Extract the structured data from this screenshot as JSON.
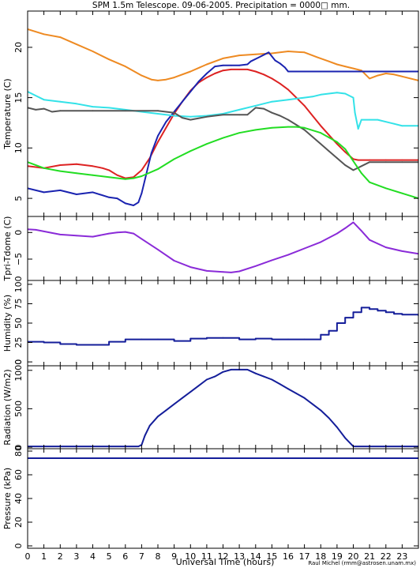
{
  "title": "SPM 1.5m Telescope. 09-06-2005. Precipitation = 0000□ mm.",
  "xlabel": "Universal Time (hours)",
  "credit": "Raul Michel (rmm@astrosen.unam.mx)",
  "colors": {
    "orange": "#ee8a22",
    "red": "#dd2222",
    "blue": "#1a23b0",
    "cyan": "#33e2e8",
    "gray": "#555555",
    "green": "#22dd22",
    "purple": "#8a2bd8",
    "navy": "#141e9a"
  },
  "chart_data": [
    {
      "type": "line",
      "ylabel": "Temperature (C)",
      "xlim": [
        0,
        24
      ],
      "ylim": [
        3.2,
        23.6
      ],
      "xticks": [
        0,
        1,
        2,
        3,
        4,
        5,
        6,
        7,
        8,
        9,
        10,
        11,
        12,
        13,
        14,
        15,
        16,
        17,
        18,
        19,
        20,
        21,
        22,
        23
      ],
      "yticks": [
        5,
        10,
        15,
        20
      ],
      "series": [
        {
          "color": "orange",
          "x": [
            0,
            1,
            2,
            3,
            4,
            5,
            6,
            7,
            7.6,
            8,
            8.5,
            9,
            10,
            11,
            12,
            13,
            14,
            15,
            16,
            17,
            17.8,
            18.5,
            19,
            19.5,
            20,
            20.5,
            21,
            21.5,
            22,
            22.5,
            23,
            24
          ],
          "y": [
            21.8,
            21.3,
            21.0,
            20.3,
            19.6,
            18.8,
            18.1,
            17.2,
            16.8,
            16.7,
            16.8,
            17.0,
            17.6,
            18.3,
            18.9,
            19.2,
            19.3,
            19.4,
            19.6,
            19.5,
            19.0,
            18.6,
            18.3,
            18.1,
            17.9,
            17.7,
            16.9,
            17.2,
            17.4,
            17.3,
            17.1,
            16.7
          ]
        },
        {
          "color": "red",
          "x": [
            0,
            1,
            2,
            3,
            4,
            4.6,
            5.0,
            5.5,
            6,
            6.5,
            7,
            7.5,
            8,
            8.5,
            9,
            9.5,
            10,
            10.5,
            11,
            11.5,
            12,
            12.5,
            13,
            13.5,
            14,
            14.5,
            15,
            15.5,
            16,
            16.5,
            17,
            17.5,
            18,
            18.5,
            19,
            19.5,
            20,
            20.3,
            21,
            22,
            23,
            24
          ],
          "y": [
            8.2,
            8.0,
            8.3,
            8.4,
            8.2,
            8.0,
            7.8,
            7.3,
            7.0,
            7.1,
            7.8,
            9.0,
            10.6,
            12.0,
            13.4,
            14.6,
            15.7,
            16.5,
            17.0,
            17.4,
            17.7,
            17.8,
            17.8,
            17.8,
            17.6,
            17.3,
            16.9,
            16.4,
            15.8,
            15.0,
            14.2,
            13.2,
            12.2,
            11.3,
            10.4,
            9.6,
            8.9,
            8.8,
            8.8,
            8.8,
            8.8,
            8.8
          ]
        },
        {
          "color": "blue",
          "x": [
            0,
            1,
            2,
            3,
            4,
            5,
            5.5,
            6,
            6.5,
            6.8,
            7,
            7.3,
            7.6,
            8,
            8.5,
            9,
            9.5,
            10,
            10.5,
            11,
            11.5,
            12,
            12.5,
            13,
            13.5,
            13.7,
            14.2,
            14.8,
            15.2,
            15.5,
            15.8,
            16,
            16.5,
            17,
            18,
            19,
            20,
            21,
            22,
            23,
            24
          ],
          "y": [
            6.0,
            5.6,
            5.8,
            5.4,
            5.6,
            5.1,
            5.0,
            4.5,
            4.3,
            4.6,
            5.5,
            7.5,
            9.5,
            11.2,
            12.6,
            13.6,
            14.6,
            15.6,
            16.6,
            17.4,
            18.1,
            18.2,
            18.2,
            18.2,
            18.3,
            18.6,
            19.0,
            19.5,
            18.7,
            18.4,
            18.0,
            17.6,
            17.6,
            17.6,
            17.6,
            17.6,
            17.6,
            17.6,
            17.6,
            17.6,
            17.6
          ]
        },
        {
          "color": "cyan",
          "x": [
            0,
            0.5,
            1,
            2,
            3,
            4,
            5,
            6,
            7,
            8,
            9,
            10,
            11,
            12,
            13,
            14,
            15,
            16,
            17,
            17.5,
            18,
            18.5,
            19,
            19.5,
            20,
            20.1,
            20.3,
            20.5,
            21,
            21.5,
            22,
            22.5,
            23,
            24
          ],
          "y": [
            15.6,
            15.2,
            14.8,
            14.6,
            14.4,
            14.1,
            14.0,
            13.8,
            13.6,
            13.4,
            13.2,
            13.1,
            13.2,
            13.4,
            13.8,
            14.2,
            14.6,
            14.8,
            15.0,
            15.1,
            15.3,
            15.4,
            15.5,
            15.4,
            15.0,
            13.5,
            11.9,
            12.8,
            12.8,
            12.8,
            12.6,
            12.4,
            12.2,
            12.2
          ]
        },
        {
          "color": "gray",
          "x": [
            0,
            0.5,
            1,
            1.5,
            2,
            4,
            6,
            8,
            9,
            9.5,
            10,
            11,
            12,
            13,
            13.5,
            14,
            14.5,
            15,
            15.5,
            16,
            16.5,
            17,
            17.5,
            18,
            18.5,
            19,
            19.5,
            20,
            20.5,
            21,
            22,
            23,
            24
          ],
          "y": [
            14.0,
            13.8,
            13.9,
            13.6,
            13.7,
            13.7,
            13.7,
            13.7,
            13.5,
            13.0,
            12.8,
            13.1,
            13.3,
            13.3,
            13.3,
            14.0,
            13.9,
            13.5,
            13.2,
            12.8,
            12.3,
            11.8,
            11.1,
            10.4,
            9.7,
            9.0,
            8.3,
            7.8,
            8.2,
            8.6,
            8.6,
            8.6,
            8.6
          ]
        },
        {
          "color": "green",
          "x": [
            0,
            1,
            2,
            3,
            4,
            5,
            6,
            6.5,
            7,
            8,
            9,
            10,
            11,
            12,
            13,
            14,
            15,
            16,
            16.5,
            17,
            18,
            19,
            19.5,
            20,
            20.5,
            21,
            22,
            23,
            24
          ],
          "y": [
            8.6,
            8.0,
            7.7,
            7.5,
            7.3,
            7.1,
            6.9,
            7.0,
            7.2,
            7.9,
            8.9,
            9.7,
            10.4,
            11.0,
            11.5,
            11.8,
            12.0,
            12.1,
            12.1,
            12.0,
            11.5,
            10.6,
            9.9,
            8.7,
            7.5,
            6.6,
            6.0,
            5.5,
            5.0
          ]
        }
      ]
    },
    {
      "type": "line",
      "ylabel": "Tpri-Tdome (C)",
      "xlim": [
        0,
        24
      ],
      "ylim": [
        -9,
        3
      ],
      "yticks": [
        0,
        -5
      ],
      "series": [
        {
          "color": "purple",
          "x": [
            0,
            0.5,
            1,
            1.5,
            2,
            3,
            4,
            5,
            5.5,
            6,
            6.5,
            7,
            8,
            9,
            10,
            11,
            12,
            12.5,
            13,
            14,
            15,
            16,
            17,
            18,
            19,
            19.5,
            20,
            20.5,
            21,
            22,
            23,
            24
          ],
          "y": [
            0.6,
            0.5,
            0.2,
            -0.1,
            -0.4,
            -0.6,
            -0.8,
            -0.2,
            0.0,
            0.1,
            -0.2,
            -1.2,
            -3.2,
            -5.3,
            -6.5,
            -7.2,
            -7.4,
            -7.5,
            -7.3,
            -6.3,
            -5.2,
            -4.2,
            -3.0,
            -1.8,
            -0.2,
            0.8,
            1.9,
            0.3,
            -1.4,
            -2.8,
            -3.5,
            -4.0
          ]
        }
      ]
    },
    {
      "type": "line",
      "ylabel": "Humidity (%)",
      "xlim": [
        0,
        24
      ],
      "ylim": [
        -5,
        105
      ],
      "yticks": [
        0,
        25,
        50,
        75,
        100
      ],
      "series": [
        {
          "color": "navy",
          "step": true,
          "x": [
            0,
            1,
            2,
            3,
            4,
            5,
            6,
            7,
            8,
            9,
            10,
            11,
            12,
            13,
            14,
            15,
            16,
            17,
            18,
            18.5,
            19,
            19.5,
            20,
            20.5,
            21,
            21.5,
            22,
            22.5,
            23,
            24
          ],
          "y": [
            26,
            25,
            23,
            22,
            22,
            26,
            29,
            29,
            29,
            27,
            30,
            31,
            31,
            29,
            30,
            29,
            29,
            29,
            35,
            40,
            50,
            57,
            64,
            70,
            68,
            66,
            64,
            62,
            61,
            60
          ]
        }
      ]
    },
    {
      "type": "line",
      "ylabel": "Radiation (W/m2)",
      "xlim": [
        0,
        24
      ],
      "ylim": [
        -20,
        1060
      ],
      "yticks": [
        0,
        500,
        1000
      ],
      "series": [
        {
          "color": "navy",
          "x": [
            0,
            1,
            2,
            3,
            4,
            5,
            6,
            6.8,
            7,
            7.2,
            7.5,
            8,
            8.5,
            9,
            9.5,
            10,
            10.5,
            11,
            11.5,
            12,
            12.5,
            13,
            13.5,
            14,
            14.5,
            15,
            15.5,
            16,
            16.5,
            17,
            17.5,
            18,
            18.5,
            19,
            19.5,
            20,
            21,
            22,
            23,
            24
          ],
          "y": [
            10,
            10,
            10,
            10,
            10,
            10,
            10,
            10,
            30,
            150,
            280,
            400,
            480,
            560,
            640,
            720,
            800,
            880,
            920,
            980,
            1010,
            1010,
            1010,
            960,
            920,
            880,
            820,
            760,
            700,
            640,
            560,
            480,
            380,
            260,
            120,
            10,
            10,
            10,
            10,
            10
          ]
        }
      ]
    },
    {
      "type": "line",
      "ylabel": "Pressure (kPa)",
      "xlim": [
        0,
        24
      ],
      "ylim": [
        -2,
        82
      ],
      "yticks": [
        0,
        20,
        40,
        60,
        80
      ],
      "series": [
        {
          "color": "navy",
          "x": [
            0,
            24
          ],
          "y": [
            74,
            74
          ]
        }
      ]
    }
  ]
}
